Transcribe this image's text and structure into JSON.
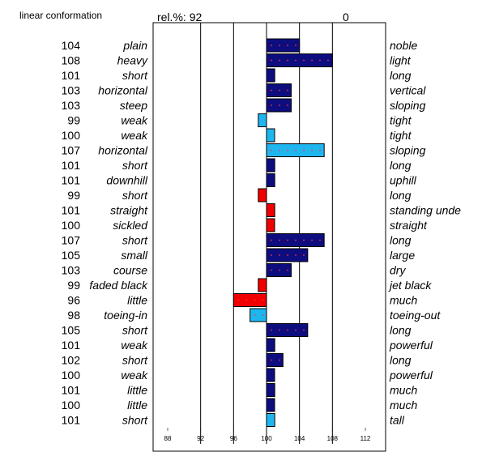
{
  "header": {
    "title": "linear conformation",
    "rel_label": "rel.%:",
    "rel_value": "92",
    "right_value": "0"
  },
  "colors": {
    "dark_bar": "#0d0d80",
    "light_bar": "#1fb6ef",
    "red_bar": "#f00000",
    "dot": "#ff3030",
    "frame": "#000000"
  },
  "chart_data": {
    "type": "bar",
    "orientation": "horizontal",
    "baseline": 100,
    "xlim": [
      88,
      112
    ],
    "x_ticks": [
      88,
      92,
      96,
      100,
      104,
      108,
      112
    ],
    "gridlines_at": [
      92,
      96,
      100,
      104,
      108
    ],
    "rows": [
      {
        "value": 104,
        "left": "plain",
        "right": "noble",
        "color": "dark"
      },
      {
        "value": 108,
        "left": "heavy",
        "right": "light",
        "color": "dark"
      },
      {
        "value": 101,
        "left": "short",
        "right": "long",
        "color": "dark"
      },
      {
        "value": 103,
        "left": "horizontal",
        "right": "vertical",
        "color": "dark"
      },
      {
        "value": 103,
        "left": "steep",
        "right": "sloping",
        "color": "dark"
      },
      {
        "value": 99,
        "left": "weak",
        "right": "tight",
        "color": "light"
      },
      {
        "value": 100,
        "left": "weak",
        "right": "tight",
        "color": "light"
      },
      {
        "value": 107,
        "left": "horizontal",
        "right": "sloping",
        "color": "light"
      },
      {
        "value": 101,
        "left": "short",
        "right": "long",
        "color": "dark"
      },
      {
        "value": 101,
        "left": "downhill",
        "right": "uphill",
        "color": "dark"
      },
      {
        "value": 99,
        "left": "short",
        "right": "long",
        "color": "red"
      },
      {
        "value": 101,
        "left": "straight",
        "right": "standing unde",
        "color": "red"
      },
      {
        "value": 100,
        "left": "sickled",
        "right": "straight",
        "color": "red"
      },
      {
        "value": 107,
        "left": "short",
        "right": "long",
        "color": "dark"
      },
      {
        "value": 105,
        "left": "small",
        "right": "large",
        "color": "dark"
      },
      {
        "value": 103,
        "left": "course",
        "right": "dry",
        "color": "dark"
      },
      {
        "value": 99,
        "left": "faded black",
        "right": "jet black",
        "color": "red"
      },
      {
        "value": 96,
        "left": "little",
        "right": "much",
        "color": "red"
      },
      {
        "value": 98,
        "left": "toeing-in",
        "right": "toeing-out",
        "color": "light"
      },
      {
        "value": 105,
        "left": "short",
        "right": "long",
        "color": "dark"
      },
      {
        "value": 101,
        "left": "weak",
        "right": "powerful",
        "color": "dark"
      },
      {
        "value": 102,
        "left": "short",
        "right": "long",
        "color": "dark"
      },
      {
        "value": 100,
        "left": "weak",
        "right": "powerful",
        "color": "dark"
      },
      {
        "value": 101,
        "left": "little",
        "right": "much",
        "color": "dark"
      },
      {
        "value": 100,
        "left": "little",
        "right": "much",
        "color": "dark"
      },
      {
        "value": 101,
        "left": "short",
        "right": "tall",
        "color": "light"
      }
    ]
  }
}
